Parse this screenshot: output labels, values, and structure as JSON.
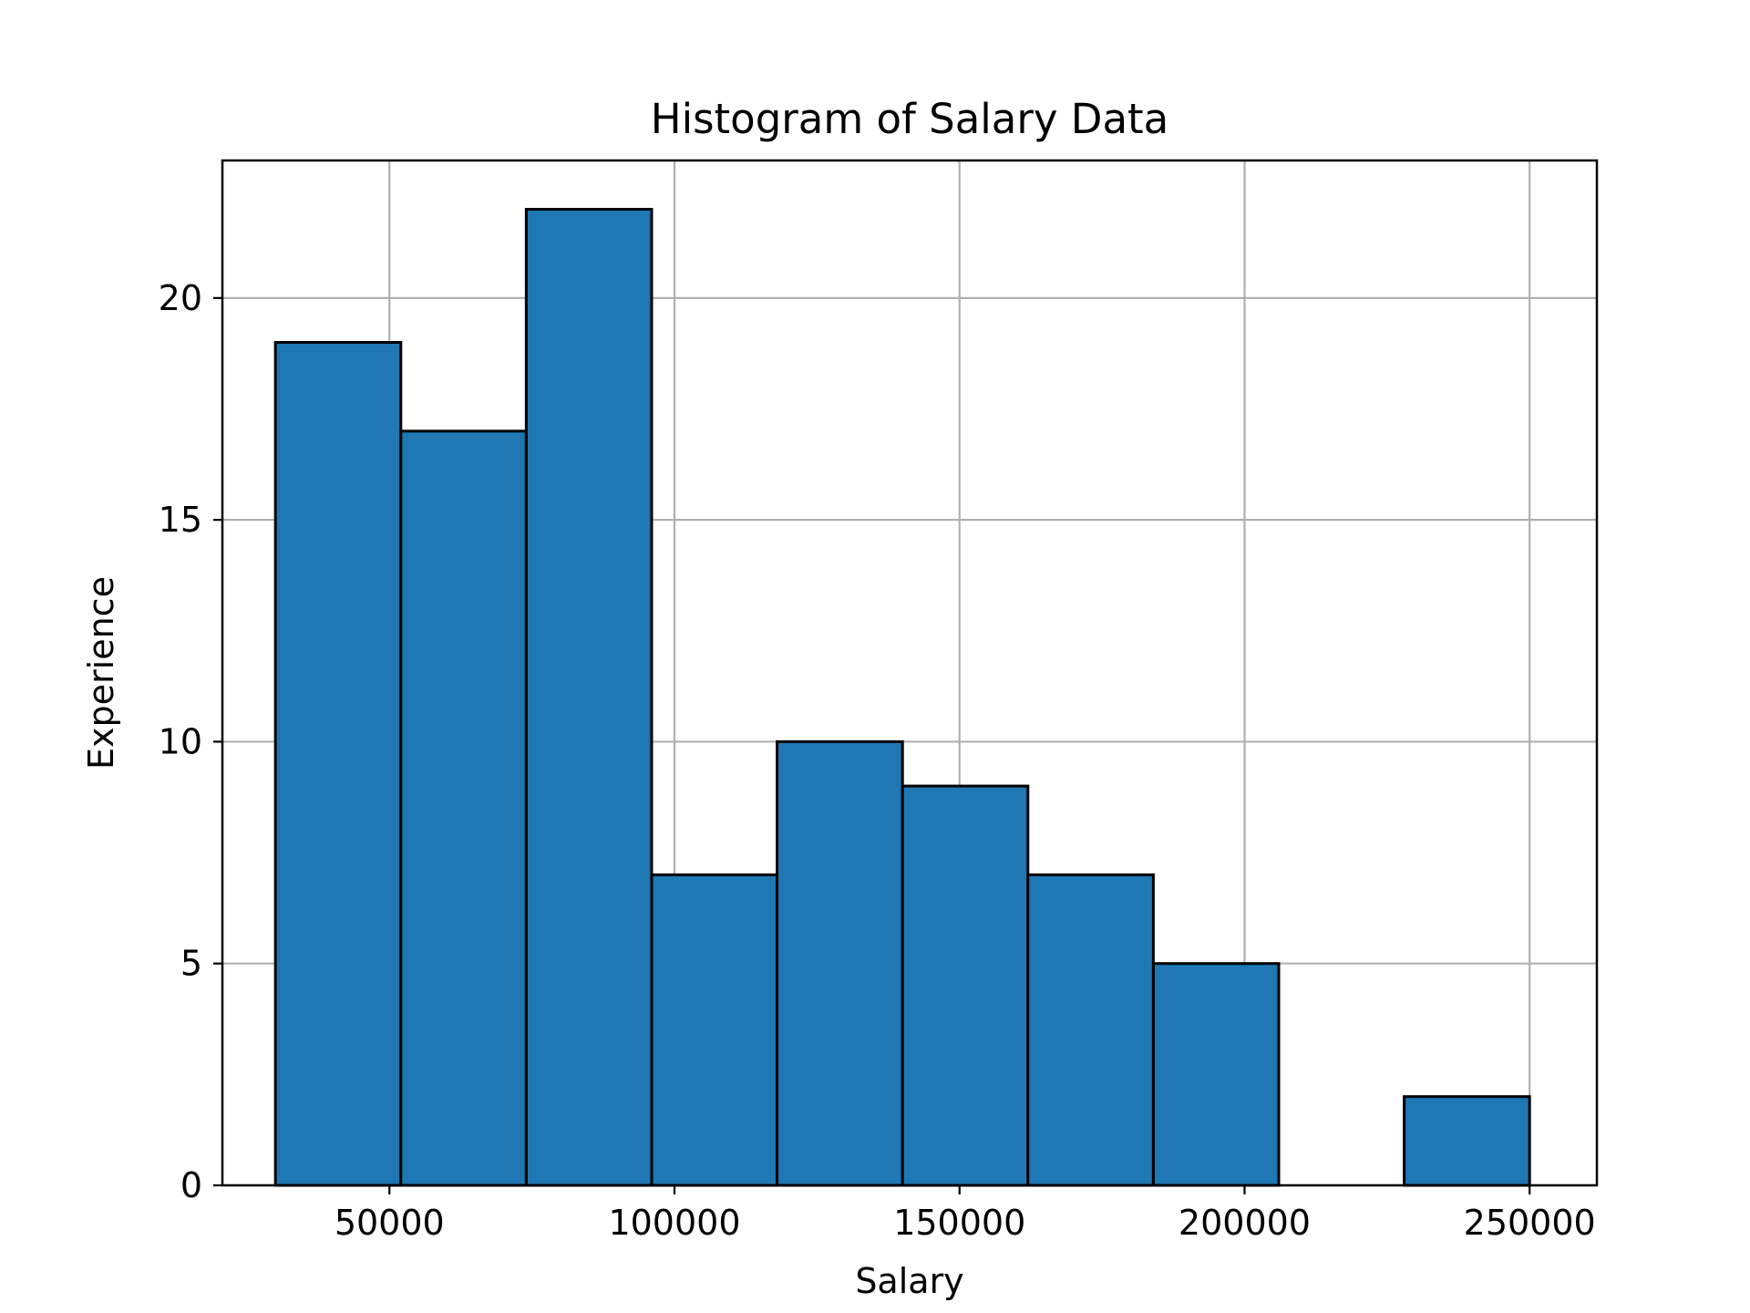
{
  "chart_data": {
    "type": "bar",
    "title": "Histogram of Salary Data",
    "xlabel": "Salary",
    "ylabel": "Experience",
    "xlim": [
      20700,
      261800
    ],
    "ylim": [
      0,
      23.1
    ],
    "xticks": [
      50000,
      100000,
      150000,
      200000,
      250000
    ],
    "yticks": [
      0,
      5,
      10,
      15,
      20
    ],
    "grid": true,
    "bin_edges": [
      30000,
      52000,
      74000,
      96000,
      118000,
      140000,
      162000,
      184000,
      206000,
      228000,
      250000
    ],
    "values": [
      19,
      17,
      22,
      7,
      10,
      9,
      7,
      5,
      0,
      2
    ],
    "bar_color": "#1f77b4",
    "edge_color": "#000000",
    "grid_color": "#b0b0b0"
  }
}
